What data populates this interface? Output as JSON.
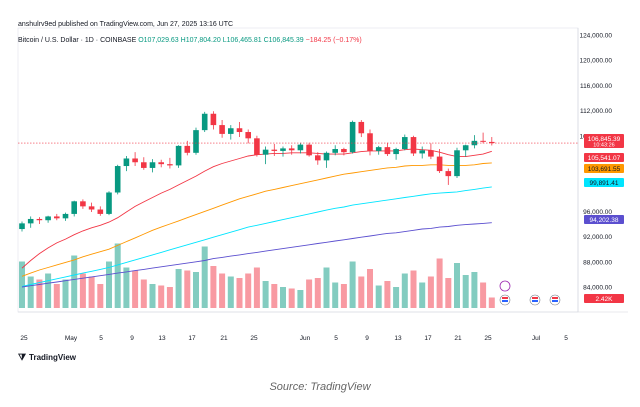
{
  "header": {
    "publisher": "anshulrv9ed published on TradingView.com, Jun 27, 2025 13:16 UTC"
  },
  "symbol": {
    "title": "Bitcoin / U.S. Dollar · 1D · COINBASE",
    "open": "O107,029.63",
    "high": "H107,804.20",
    "low": "L106,465.81",
    "close": "C106,845.39",
    "change": "−184.25 (−0.17%)"
  },
  "footer": {
    "logo_text": "TradingView"
  },
  "caption": "Source: TradingView",
  "colors": {
    "up": "#089981",
    "down": "#f23645",
    "ma1": "#f23645",
    "ma2": "#ff9800",
    "ma3": "#00e5ff",
    "ma4": "#5b4fcf"
  },
  "chart_data": {
    "type": "candlestick",
    "y_ticks": [
      "124,000.00",
      "120,000.00",
      "116,000.00",
      "112,000.00",
      "108,000.00",
      "96,000.00",
      "92,000.00",
      "88,000.00",
      "84,000.00"
    ],
    "ylim": [
      80000,
      125000
    ],
    "x_ticks": [
      "25",
      "May",
      "5",
      "9",
      "13",
      "17",
      "21",
      "25",
      "Jun",
      "5",
      "9",
      "13",
      "17",
      "21",
      "25",
      "Jul",
      "5"
    ],
    "candles": [
      [
        93200,
        94400,
        92800,
        94100
      ],
      [
        94100,
        95200,
        93400,
        94800
      ],
      [
        94800,
        95100,
        94000,
        94600
      ],
      [
        94600,
        95300,
        94200,
        95200
      ],
      [
        95200,
        95600,
        94600,
        94900
      ],
      [
        94900,
        95800,
        94500,
        95600
      ],
      [
        95600,
        97700,
        95200,
        97600
      ],
      [
        97600,
        97900,
        96400,
        96800
      ],
      [
        96800,
        97400,
        95900,
        96300
      ],
      [
        96300,
        96800,
        95300,
        95600
      ],
      [
        95600,
        99200,
        95400,
        99000
      ],
      [
        99000,
        103400,
        98700,
        103200
      ],
      [
        103200,
        104800,
        102400,
        104400
      ],
      [
        104400,
        105400,
        103200,
        103800
      ],
      [
        103800,
        104600,
        102600,
        102900
      ],
      [
        102900,
        104300,
        102200,
        103800
      ],
      [
        103800,
        104200,
        103000,
        103500
      ],
      [
        103500,
        104500,
        102800,
        103300
      ],
      [
        103300,
        106500,
        102900,
        106400
      ],
      [
        106400,
        107200,
        104900,
        105300
      ],
      [
        105300,
        109300,
        105000,
        108900
      ],
      [
        108900,
        111800,
        108600,
        111500
      ],
      [
        111500,
        111900,
        109000,
        109700
      ],
      [
        109700,
        110500,
        107700,
        108300
      ],
      [
        108300,
        109700,
        107400,
        109200
      ],
      [
        109200,
        110200,
        107800,
        108600
      ],
      [
        108600,
        109000,
        106800,
        107600
      ],
      [
        107600,
        108000,
        104700,
        105000
      ],
      [
        105000,
        106300,
        103500,
        105800
      ],
      [
        105800,
        106700,
        104800,
        105600
      ],
      [
        105600,
        106300,
        104700,
        106000
      ],
      [
        106000,
        106500,
        105000,
        105700
      ],
      [
        105700,
        106900,
        105200,
        106600
      ],
      [
        106600,
        106900,
        104700,
        104900
      ],
      [
        104900,
        105400,
        103400,
        104100
      ],
      [
        104100,
        105500,
        102900,
        105300
      ],
      [
        105300,
        106500,
        104900,
        105900
      ],
      [
        105900,
        106100,
        104900,
        105400
      ],
      [
        105400,
        110400,
        105200,
        110200
      ],
      [
        110200,
        110500,
        107800,
        108400
      ],
      [
        108400,
        109000,
        104900,
        105600
      ],
      [
        105600,
        106400,
        105000,
        106200
      ],
      [
        106200,
        106900,
        104800,
        105100
      ],
      [
        105100,
        106100,
        104200,
        105900
      ],
      [
        105900,
        108200,
        105700,
        107800
      ],
      [
        107800,
        108000,
        104800,
        105200
      ],
      [
        105200,
        106300,
        104400,
        105700
      ],
      [
        105700,
        106800,
        104300,
        104700
      ],
      [
        104700,
        105900,
        102100,
        102400
      ],
      [
        102400,
        102800,
        100200,
        101600
      ],
      [
        101600,
        106100,
        101300,
        105700
      ],
      [
        105700,
        106600,
        104700,
        106500
      ],
      [
        106500,
        108100,
        106000,
        107200
      ],
      [
        107200,
        108500,
        106800,
        107100
      ],
      [
        107029.63,
        107804.2,
        106465.81,
        106845.39
      ]
    ],
    "volumes": [
      3.1,
      2.1,
      1.9,
      2.3,
      1.6,
      1.9,
      3.5,
      2.3,
      2.1,
      1.6,
      3.1,
      4.3,
      2.7,
      2.5,
      1.9,
      1.6,
      1.5,
      1.4,
      2.6,
      2.5,
      2.4,
      4.1,
      2.8,
      2.3,
      2.1,
      2.0,
      2.3,
      2.7,
      1.8,
      1.6,
      1.4,
      1.3,
      1.2,
      1.9,
      2.0,
      2.7,
      1.7,
      1.6,
      3.1,
      2.1,
      2.6,
      1.5,
      1.8,
      1.4,
      2.3,
      2.5,
      1.7,
      2.1,
      3.3,
      2.0,
      3.0,
      2.2,
      2.4,
      1.7,
      0.7
    ],
    "ma": [
      {
        "name": "ma1",
        "values": [
          87000,
          88200,
          89300,
          90200,
          91000,
          91600,
          92300,
          92900,
          93400,
          93800,
          94300,
          95000,
          95900,
          96800,
          97500,
          98200,
          98900,
          99500,
          100200,
          100900,
          101600,
          102400,
          103100,
          103600,
          104000,
          104400,
          104800,
          105000,
          105100,
          105200,
          105200,
          105300,
          105300,
          105300,
          105200,
          105100,
          105100,
          105100,
          105300,
          105500,
          105600,
          105600,
          105600,
          105600,
          105800,
          105900,
          105800,
          105700,
          105400,
          105000,
          104700,
          104700,
          104900,
          105100,
          105541
        ]
      },
      {
        "name": "ma2",
        "values": [
          85700,
          86200,
          86700,
          87100,
          87500,
          87900,
          88300,
          88800,
          89200,
          89600,
          90000,
          90600,
          91200,
          91800,
          92400,
          93000,
          93500,
          94000,
          94500,
          95000,
          95500,
          96000,
          96500,
          97000,
          97500,
          98000,
          98400,
          98800,
          99200,
          99500,
          99800,
          100100,
          100400,
          100700,
          101000,
          101300,
          101600,
          101900,
          102100,
          102300,
          102500,
          102700,
          102900,
          103000,
          103200,
          103300,
          103300,
          103400,
          103400,
          103300,
          103300,
          103300,
          103400,
          103600,
          103692
        ]
      },
      {
        "name": "ma3",
        "values": [
          84100,
          84400,
          84700,
          85000,
          85300,
          85600,
          85900,
          86200,
          86500,
          86800,
          87100,
          87500,
          87900,
          88300,
          88700,
          89100,
          89500,
          89900,
          90300,
          90700,
          91100,
          91500,
          91900,
          92300,
          92700,
          93100,
          93500,
          93800,
          94100,
          94400,
          94700,
          95000,
          95300,
          95600,
          95900,
          96200,
          96500,
          96700,
          97000,
          97200,
          97400,
          97600,
          97800,
          98000,
          98200,
          98400,
          98600,
          98800,
          98900,
          99000,
          99100,
          99300,
          99500,
          99700,
          99891
        ]
      },
      {
        "name": "ma4",
        "values": [
          84000,
          84200,
          84400,
          84600,
          84800,
          85000,
          85200,
          85400,
          85600,
          85800,
          86000,
          86200,
          86400,
          86600,
          86800,
          87000,
          87200,
          87400,
          87600,
          87800,
          88000,
          88200,
          88500,
          88700,
          88900,
          89100,
          89300,
          89500,
          89700,
          89900,
          90100,
          90300,
          90500,
          90700,
          90900,
          91100,
          91300,
          91500,
          91700,
          91900,
          92100,
          92300,
          92500,
          92600,
          92800,
          93000,
          93200,
          93300,
          93500,
          93600,
          93800,
          93900,
          94000,
          94100,
          94202
        ]
      }
    ],
    "price_labels": [
      {
        "text": "106,845.39",
        "sub": "10:43:26",
        "color": "#f23645"
      },
      {
        "text": "105,541.07",
        "color": "#f23645"
      },
      {
        "text": "103,691.55",
        "color": "#ff9800"
      },
      {
        "text": "99,891.41",
        "color": "#00e5ff"
      },
      {
        "text": "94,202.38",
        "color": "#5b4fcf"
      },
      {
        "text": "2.42K",
        "color": "#f23645"
      }
    ]
  }
}
